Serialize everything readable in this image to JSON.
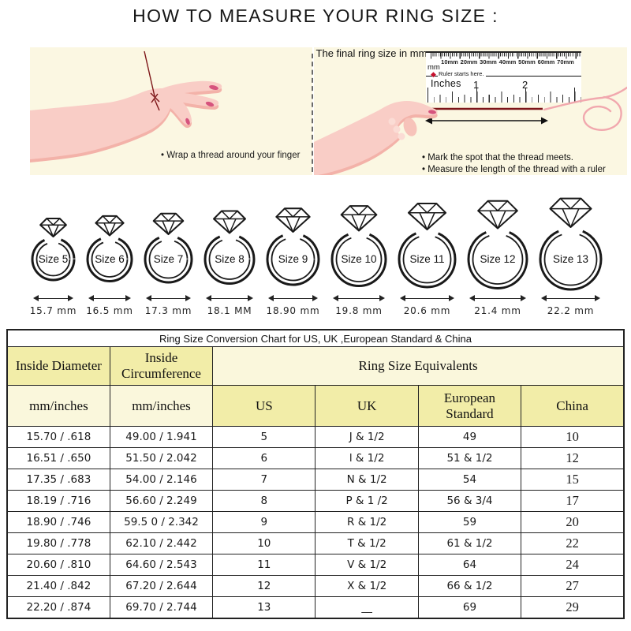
{
  "title": "HOW TO MEASURE YOUR RING SIZE :",
  "panels": {
    "left": {
      "caption": "• Wrap a thread around your finger"
    },
    "right": {
      "ruler": {
        "mm_labels": [
          "10mm",
          "20mm",
          "30mm",
          "40mm",
          "50mm",
          "60mm",
          "70mm"
        ],
        "unit_label": "mm",
        "start_note": "Ruler starts here.",
        "inches_label": "Inches",
        "inch_1": "1",
        "inch_2": "2"
      },
      "arrow_caption": "The final ring size in mm",
      "bullet_1": "• Mark the spot that the thread meets.",
      "bullet_2": "• Measure the length of the thread with a ruler"
    }
  },
  "rings": [
    {
      "label": "Size 5",
      "mm": "15.7 mm"
    },
    {
      "label": "Size 6",
      "mm": "16.5 mm"
    },
    {
      "label": "Size 7",
      "mm": "17.3 mm"
    },
    {
      "label": "Size 8",
      "mm": "18.1 MM"
    },
    {
      "label": "Size 9",
      "mm": "18.90 mm"
    },
    {
      "label": "Size 10",
      "mm": "19.8 mm"
    },
    {
      "label": "Size 11",
      "mm": "20.6 mm"
    },
    {
      "label": "Size 12",
      "mm": "21.4 mm"
    },
    {
      "label": "Size 13",
      "mm": "22.2 mm"
    }
  ],
  "table": {
    "title": "Ring Size Conversion Chart for US, UK ,European Standard & China",
    "group_headers": {
      "inside_diameter": "Inside Diameter",
      "inside_circumference": "Inside Circumference",
      "equivalents": "Ring Size Equivalents"
    },
    "col_headers": [
      "mm/inches",
      "mm/inches",
      "US",
      "UK",
      "European Standard",
      "China"
    ],
    "rows": [
      [
        "15.70 / .618",
        "49.00 / 1.941",
        "5",
        "J & 1/2",
        "49",
        "10"
      ],
      [
        "16.51 / .650",
        "51.50 / 2.042",
        "6",
        "l & 1/2",
        "51 & 1/2",
        "12"
      ],
      [
        "17.35 / .683",
        "54.00 / 2.146",
        "7",
        "N & 1/2",
        "54",
        "15"
      ],
      [
        "18.19 / .716",
        "56.60 / 2.249",
        "8",
        "P & 1 /2",
        "56 & 3/4",
        "17"
      ],
      [
        "18.90 / .746",
        "59.5 0 / 2.342",
        "9",
        "R & 1/2",
        "59",
        "20"
      ],
      [
        "19.80 / .778",
        "62.10 / 2.442",
        "10",
        "T & 1/2",
        "61 & 1/2",
        "22"
      ],
      [
        "20.60 / .810",
        "64.60 / 2.543",
        "11",
        "V & 1/2",
        "64",
        "24"
      ],
      [
        "21.40 / .842",
        "67.20 / 2.644",
        "12",
        "X & 1/2",
        "66 & 1/2",
        "27"
      ],
      [
        "22.20 / .874",
        "69.70 / 2.744",
        "13",
        "__",
        "69",
        "29"
      ]
    ]
  },
  "colors": {
    "panel_bg": "#FBF7E2",
    "cell_yellow": "#F2EDA8",
    "cell_cream": "#FAF7DC",
    "hand_pink": "#F9CDC6",
    "hand_shadow": "#F3B2A9",
    "knuckle_pink": "#FBDCD5",
    "thumb_pink": "#F7C3BA",
    "nail_pink": "#D6537D",
    "thread_red": "#7D1518",
    "ruler_red": "#C8102E",
    "thread_pink": "#F1A8AE"
  }
}
